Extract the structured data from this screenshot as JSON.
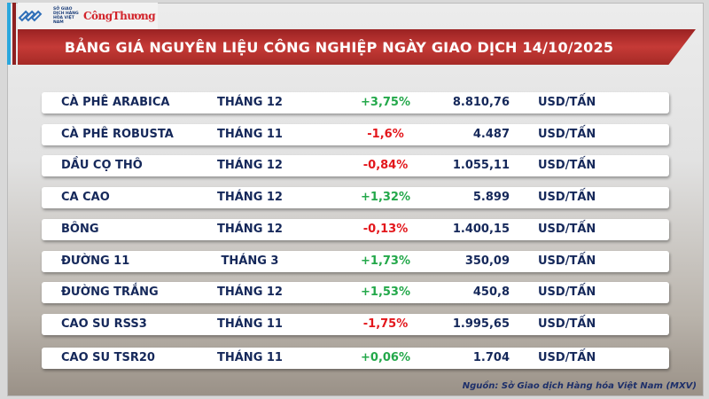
{
  "logos": {
    "mxv": "SỞ GIAO DỊCH HÀNG HÓA VIỆT NAM",
    "publication": "CôngThương"
  },
  "title": "BẢNG GIÁ NGUYÊN LIỆU CÔNG NGHIỆP NGÀY GIAO DỊCH 14/10/2025",
  "rows": [
    {
      "name": "CÀ PHÊ ARABICA",
      "month": "THÁNG 12",
      "change": "+3,75%",
      "price": "8.810,76",
      "unit": "USD/TẤN"
    },
    {
      "name": "CÀ PHÊ ROBUSTA",
      "month": "THÁNG 11",
      "change": "-1,6%",
      "price": "4.487",
      "unit": "USD/TẤN"
    },
    {
      "name": "DẦU CỌ THÔ",
      "month": "THÁNG 12",
      "change": "-0,84%",
      "price": "1.055,11",
      "unit": "USD/TẤN"
    },
    {
      "name": "CA CAO",
      "month": "THÁNG 12",
      "change": "+1,32%",
      "price": "5.899",
      "unit": "USD/TẤN"
    },
    {
      "name": "BÔNG",
      "month": "THÁNG 12",
      "change": "-0,13%",
      "price": "1.400,15",
      "unit": "USD/TẤN"
    },
    {
      "name": "ĐƯỜNG 11",
      "month": "THÁNG 3",
      "change": "+1,73%",
      "price": "350,09",
      "unit": "USD/TẤN"
    },
    {
      "name": "ĐƯỜNG TRẮNG",
      "month": "THÁNG 12",
      "change": "+1,53%",
      "price": "450,8",
      "unit": "USD/TẤN"
    },
    {
      "name": "CAO SU RSS3",
      "month": "THÁNG 11",
      "change": "-1,75%",
      "price": "1.995,65",
      "unit": "USD/TẤN"
    },
    {
      "name": "CAO SU TSR20",
      "month": "THÁNG 11",
      "change": "+0,06%",
      "price": "1.704",
      "unit": "USD/TẤN"
    }
  ],
  "colors": {
    "positive": "#23a84a",
    "negative": "#e3161b",
    "banner": "#b83230",
    "text": "#15285a"
  },
  "source": "Nguồn: Sở Giao dịch Hàng hóa Việt Nam (MXV)"
}
